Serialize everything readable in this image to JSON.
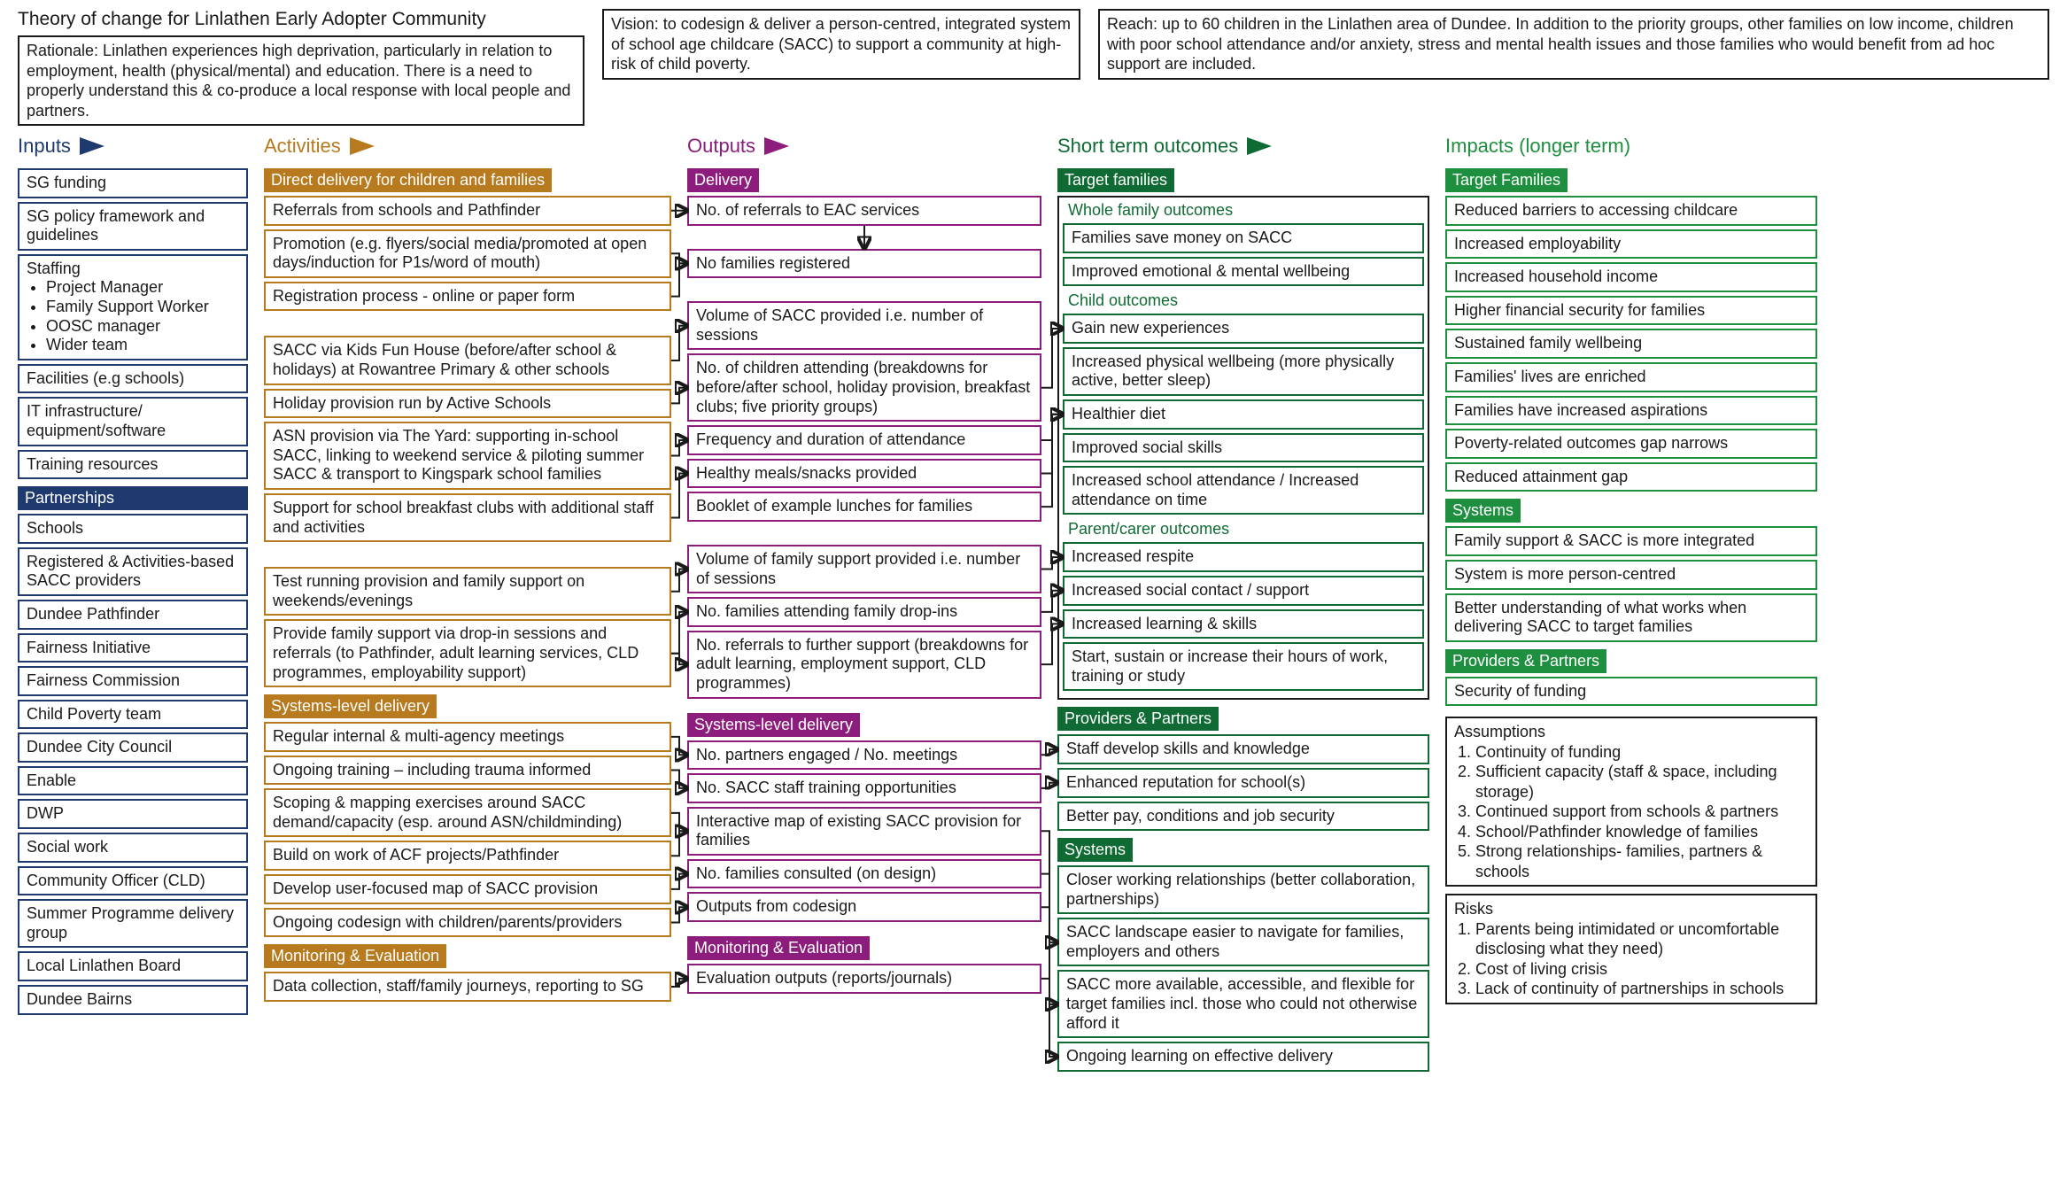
{
  "colors": {
    "inputs": "#1f3a6e",
    "activities": "#b77a1e",
    "outputs": "#8c1d7c",
    "sto": "#0f6b33",
    "impacts": "#1e8f3f",
    "text": "#1a1a1a",
    "arrowHead": "#1a1a1a"
  },
  "title": "Theory of change for Linlathen Early Adopter Community",
  "rationale": "Rationale: Linlathen experiences high deprivation, particularly in relation to employment, health (physical/mental) and education. There is a need to properly understand this & co-produce a local response with local people and partners.",
  "vision": "Vision: to codesign & deliver a person-centred, integrated system of school age childcare (SACC) to support a community at high-risk of child poverty.",
  "reach": "Reach: up to 60 children in the Linlathen area of Dundee. In addition to the priority groups, other families on low income, children with poor school attendance and/or anxiety, stress and mental health issues and those families who would benefit from ad hoc support are included.",
  "inputs": {
    "heading": "Inputs",
    "items": [
      "SG funding",
      "SG policy framework and guidelines",
      "Staffing\n• Project Manager\n• Family Support Worker\n• OOSC manager\n• Wider team",
      "Facilities (e.g schools)",
      "IT infrastructure/ equipment/software",
      "Training resources"
    ],
    "partnerships_heading": "Partnerships",
    "partnerships": [
      "Schools",
      "Registered & Activities-based SACC providers",
      "Dundee Pathfinder",
      "Fairness Initiative",
      "Fairness Commission",
      "Child Poverty team",
      "Dundee City Council",
      "Enable",
      "DWP",
      "Social work",
      "Community Officer (CLD)",
      "Summer Programme delivery group",
      "Local Linlathen Board",
      "Dundee Bairns"
    ]
  },
  "activities": {
    "heading": "Activities",
    "groups": [
      {
        "title": "Direct delivery for children and families",
        "blocks": [
          [
            "Referrals from schools and Pathfinder",
            "Promotion (e.g. flyers/social media/promoted at open days/induction for P1s/word of mouth)",
            "Registration process - online or paper form"
          ],
          [
            "SACC via Kids Fun House (before/after school & holidays) at Rowantree Primary & other schools",
            "Holiday provision run by Active Schools",
            "ASN provision via The Yard: supporting in-school SACC, linking to weekend service & piloting summer SACC & transport to Kingspark school families",
            "Support for school breakfast clubs with additional staff and activities"
          ],
          [
            "Test running provision and family support on weekends/evenings",
            "Provide family support via drop-in sessions and referrals (to Pathfinder, adult learning services, CLD programmes, employability support)"
          ]
        ]
      },
      {
        "title": "Systems-level delivery",
        "blocks": [
          [
            "Regular internal & multi-agency meetings",
            "Ongoing training – including trauma informed",
            "Scoping & mapping exercises around SACC demand/capacity (esp. around ASN/childminding)",
            "Build on work of ACF projects/Pathfinder",
            "Develop user-focused map of SACC provision",
            "Ongoing codesign with children/parents/providers"
          ]
        ]
      },
      {
        "title": "Monitoring & Evaluation",
        "blocks": [
          [
            "Data collection, staff/family journeys, reporting to SG"
          ]
        ]
      }
    ]
  },
  "outputs": {
    "heading": "Outputs",
    "groups": [
      {
        "title": "Delivery",
        "blocks": [
          [
            "No. of referrals to EAC services"
          ],
          [
            "No families registered"
          ],
          [
            "Volume of SACC provided i.e. number of sessions",
            "No. of children attending (breakdowns for before/after school, holiday provision, breakfast clubs; five priority groups)",
            "Frequency and duration of attendance",
            "Healthy meals/snacks provided",
            "Booklet of example lunches for families"
          ],
          [
            "Volume of family support provided i.e. number of sessions",
            "No. families attending family drop-ins",
            "No. referrals to further support (breakdowns for adult learning, employment support, CLD programmes)"
          ]
        ]
      },
      {
        "title": "Systems-level delivery",
        "blocks": [
          [
            "No. partners engaged / No. meetings",
            "No. SACC staff training opportunities",
            "Interactive map of existing SACC provision for families",
            "No. families consulted (on design)",
            "Outputs from codesign"
          ]
        ]
      },
      {
        "title": "Monitoring & Evaluation",
        "blocks": [
          [
            "Evaluation outputs (reports/journals)"
          ]
        ]
      }
    ]
  },
  "sto": {
    "heading": "Short term outcomes",
    "groups": [
      {
        "title": "Target families",
        "framed": true,
        "subs": [
          {
            "label": "Whole family outcomes",
            "items": [
              "Families save money on SACC",
              "Improved emotional & mental wellbeing"
            ]
          },
          {
            "label": "Child outcomes",
            "items": [
              "Gain new experiences",
              "Increased physical wellbeing (more physically active, better sleep)",
              "Healthier diet",
              "Improved social skills",
              "Increased school attendance / Increased attendance on time"
            ]
          },
          {
            "label": "Parent/carer outcomes",
            "items": [
              "Increased respite",
              "Increased social contact / support",
              "Increased learning & skills",
              "Start, sustain or increase their hours of work, training or study"
            ]
          }
        ]
      },
      {
        "title": "Providers & Partners",
        "subs": [
          {
            "items": [
              "Staff develop skills and knowledge",
              "Enhanced reputation for school(s)",
              "Better pay, conditions and job security"
            ]
          }
        ]
      },
      {
        "title": "Systems",
        "subs": [
          {
            "items": [
              "Closer working relationships (better collaboration, partnerships)",
              "SACC landscape easier to navigate for families, employers and others",
              "SACC more available, accessible, and flexible for target families incl. those who could not otherwise afford it",
              "Ongoing learning on effective delivery"
            ]
          }
        ]
      }
    ]
  },
  "impacts": {
    "heading": "Impacts (longer term)",
    "groups": [
      {
        "title": "Target Families",
        "items": [
          "Reduced barriers to accessing childcare",
          "Increased employability",
          "Increased household income",
          "Higher financial security for families",
          "Sustained family wellbeing",
          "Families' lives are enriched",
          "Families have increased aspirations",
          "Poverty-related outcomes gap narrows",
          "Reduced attainment gap"
        ]
      },
      {
        "title": "Systems",
        "items": [
          "Family support & SACC is more integrated",
          "System  is more person-centred",
          "Better understanding of what works when delivering SACC to target families"
        ]
      },
      {
        "title": "Providers & Partners",
        "items": [
          "Security of funding"
        ]
      }
    ],
    "assumptions_title": "Assumptions",
    "assumptions": [
      "Continuity of funding",
      "Sufficient capacity (staff & space, including storage)",
      "Continued support from schools & partners",
      "School/Pathfinder knowledge of families",
      "Strong relationships- families, partners & schools"
    ],
    "risks_title": "Risks",
    "risks": [
      "Parents being intimidated or uncomfortable disclosing what they need)",
      "Cost of living crisis",
      "Lack of continuity of partnerships in schools"
    ]
  },
  "connectors": [
    {
      "from": "act-0-0-0",
      "to": "out-0-0-0"
    },
    {
      "from": "act-0-0-1",
      "to": "out-0-1-0"
    },
    {
      "from": "act-0-0-2",
      "to": "out-0-1-0"
    },
    {
      "from": "out-0-0-0",
      "to": "out-0-1-0",
      "vertical": true
    },
    {
      "from": "act-0-1-0",
      "to": "out-0-2-0"
    },
    {
      "from": "act-0-1-1",
      "to": "out-0-2-1"
    },
    {
      "from": "act-0-1-2",
      "to": "out-0-2-2"
    },
    {
      "from": "act-0-1-3",
      "to": "out-0-2-3"
    },
    {
      "from": "act-0-2-0",
      "to": "out-0-3-0"
    },
    {
      "from": "act-0-2-1",
      "to": "out-0-3-1"
    },
    {
      "from": "act-0-2-1",
      "to": "out-0-3-2"
    },
    {
      "from": "act-1-0-0",
      "to": "out-1-0-0"
    },
    {
      "from": "act-1-0-1",
      "to": "out-1-0-1"
    },
    {
      "from": "act-1-0-2",
      "to": "out-1-0-2"
    },
    {
      "from": "act-1-0-3",
      "to": "out-1-0-2"
    },
    {
      "from": "act-1-0-4",
      "to": "out-1-0-3"
    },
    {
      "from": "act-1-0-5",
      "to": "out-1-0-4"
    },
    {
      "from": "act-2-0-0",
      "to": "out-2-0-0"
    },
    {
      "from": "out-0-2-1",
      "to": "sto-0-1-0"
    },
    {
      "from": "out-0-2-2",
      "to": "sto-0-1-2"
    },
    {
      "from": "out-0-2-3",
      "to": "sto-0-1-2"
    },
    {
      "from": "out-0-2-4",
      "to": "sto-0-1-2"
    },
    {
      "from": "out-0-3-0",
      "to": "sto-0-2-0"
    },
    {
      "from": "out-0-3-1",
      "to": "sto-0-2-1"
    },
    {
      "from": "out-0-3-2",
      "to": "sto-0-2-2"
    },
    {
      "from": "out-1-0-0",
      "to": "sto-1-0-0"
    },
    {
      "from": "out-1-0-1",
      "to": "sto-1-0-1"
    },
    {
      "from": "out-1-0-2",
      "to": "sto-2-0-1"
    },
    {
      "from": "out-1-0-3",
      "to": "sto-2-0-2"
    },
    {
      "from": "out-1-0-4",
      "to": "sto-2-0-2"
    },
    {
      "from": "out-2-0-0",
      "to": "sto-2-0-3"
    }
  ]
}
